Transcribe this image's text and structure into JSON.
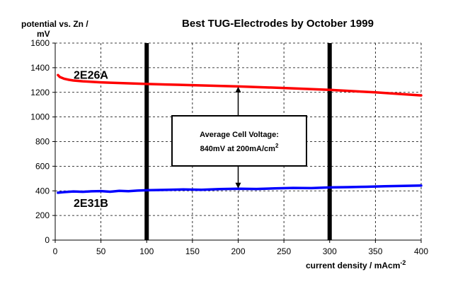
{
  "chart_data": {
    "type": "line",
    "title": "Best TUG-Electrodes by October 1999",
    "ylabel_line1": "potential vs. Zn /",
    "ylabel_line2": "mV",
    "xlabel": "current density / mAcm",
    "xlabel_exponent": "-2",
    "xlim": [
      0,
      400
    ],
    "ylim": [
      0,
      1600
    ],
    "x_ticks": [
      0,
      50,
      100,
      150,
      200,
      250,
      300,
      350,
      400
    ],
    "y_ticks": [
      0,
      200,
      400,
      600,
      800,
      1000,
      1200,
      1400,
      1600
    ],
    "grid": true,
    "vertical_markers": [
      100,
      300
    ],
    "series": [
      {
        "name": "2E26A",
        "color": "#ff0000",
        "x": [
          3,
          5,
          10,
          15,
          20,
          30,
          40,
          50,
          60,
          80,
          100,
          120,
          150,
          200,
          250,
          300,
          350,
          400
        ],
        "y": [
          1340,
          1325,
          1310,
          1302,
          1296,
          1290,
          1285,
          1281,
          1278,
          1273,
          1268,
          1264,
          1258,
          1248,
          1235,
          1220,
          1200,
          1175
        ]
      },
      {
        "name": "2E31B",
        "color": "#0000ff",
        "x": [
          3,
          10,
          20,
          30,
          40,
          50,
          60,
          70,
          80,
          90,
          100,
          120,
          140,
          160,
          180,
          200,
          220,
          240,
          260,
          280,
          300,
          320,
          340,
          360,
          380,
          400
        ],
        "y": [
          385,
          390,
          395,
          392,
          396,
          398,
          393,
          400,
          397,
          402,
          405,
          408,
          411,
          409,
          414,
          417,
          415,
          420,
          424,
          422,
          428,
          430,
          433,
          437,
          440,
          443
        ]
      }
    ],
    "annotation": {
      "line1": "Average Cell Voltage:",
      "line2": "840mV at 200mA/cm",
      "line2_exponent": "2",
      "x": 200,
      "arrow_top": 1245,
      "arrow_bottom": 420
    }
  }
}
